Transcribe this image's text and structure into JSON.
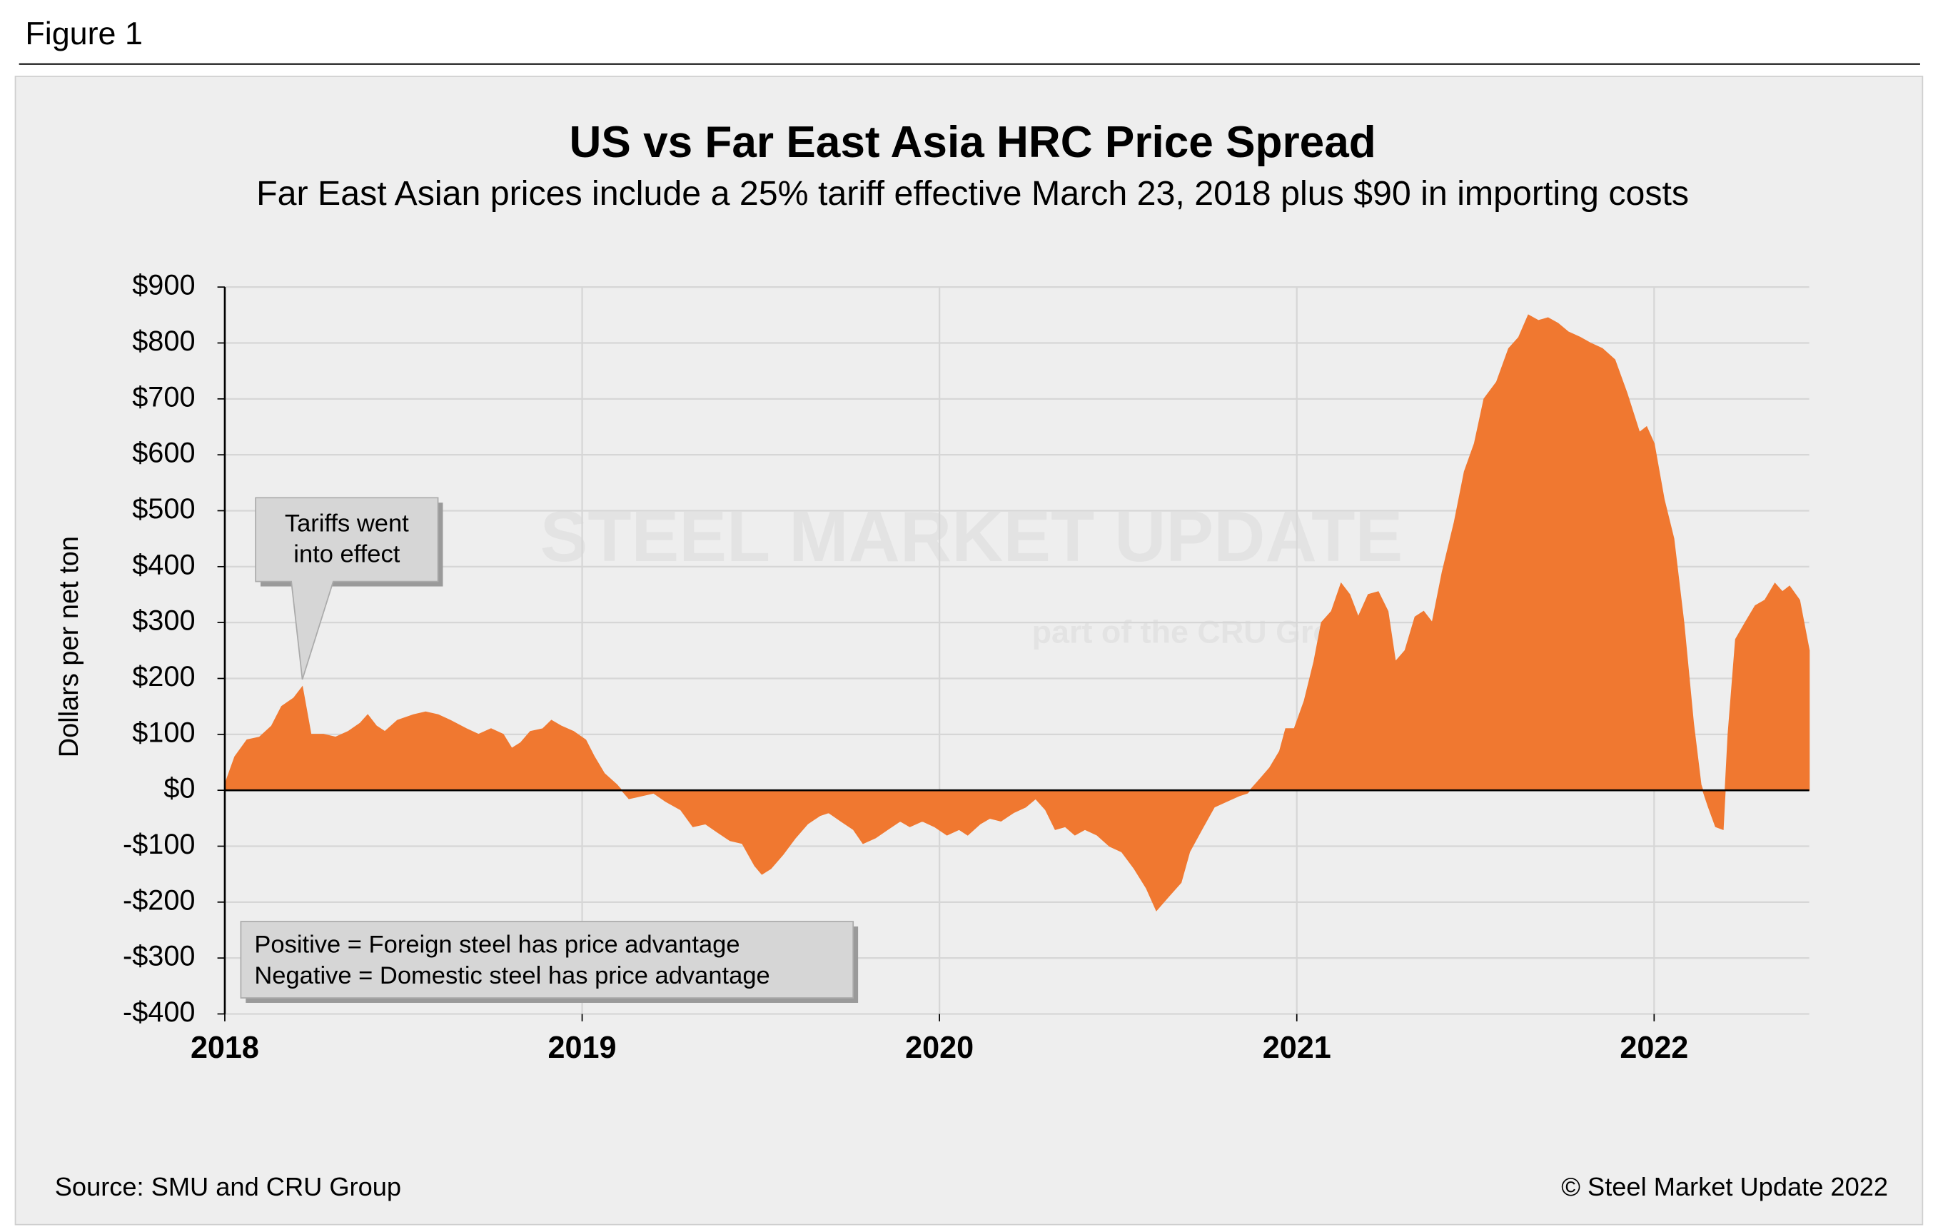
{
  "figure_label": "Figure 1",
  "source": "Source: SMU and CRU Group",
  "copyright": "© Steel Market Update 2022",
  "watermark": [
    "STEEL MARKET UPDATE",
    "part of the CRU Group"
  ],
  "chart_data": {
    "type": "area",
    "title": "US vs Far East Asia HRC Price Spread",
    "subtitle": "Far East Asian prices include a 25% tariff effective March 23, 2018 plus $90 in importing costs",
    "y_label": "Dollars per net ton",
    "color": "#f07830",
    "grid": true,
    "annotation": {
      "lines": [
        "Tariffs went",
        "into effect"
      ],
      "x": 2018.217,
      "y": 185
    },
    "note": [
      "Positive = Foreign steel has price advantage",
      "Negative = Domestic steel has price advantage"
    ],
    "xlim": [
      2018,
      2022.434
    ],
    "xticks": [
      2018,
      2019,
      2020,
      2021,
      2022
    ],
    "ylim": [
      -400,
      900
    ],
    "yticks": [
      {
        "value": -400,
        "label": "-$400"
      },
      {
        "value": -300,
        "label": "-$300"
      },
      {
        "value": -200,
        "label": "-$200"
      },
      {
        "value": -100,
        "label": "-$100"
      },
      {
        "value": 0,
        "label": "$0"
      },
      {
        "value": 100,
        "label": "$100"
      },
      {
        "value": 200,
        "label": "$200"
      },
      {
        "value": 300,
        "label": "$300"
      },
      {
        "value": 400,
        "label": "$400"
      },
      {
        "value": 500,
        "label": "$500"
      },
      {
        "value": 600,
        "label": "$600"
      },
      {
        "value": 700,
        "label": "$700"
      },
      {
        "value": 800,
        "label": "$800"
      },
      {
        "value": 900,
        "label": "$900"
      }
    ],
    "x": [
      2018.0,
      2018.028,
      2018.062,
      2018.097,
      2018.131,
      2018.159,
      2018.193,
      2018.217,
      2018.241,
      2018.276,
      2018.31,
      2018.345,
      2018.379,
      2018.4,
      2018.424,
      2018.448,
      2018.483,
      2018.528,
      2018.562,
      2018.597,
      2018.631,
      2018.676,
      2018.71,
      2018.745,
      2018.779,
      2018.803,
      2018.828,
      2018.855,
      2018.89,
      2018.914,
      2018.941,
      2018.976,
      2019.01,
      2019.034,
      2019.062,
      2019.097,
      2019.131,
      2019.166,
      2019.2,
      2019.234,
      2019.276,
      2019.31,
      2019.345,
      2019.379,
      2019.414,
      2019.448,
      2019.483,
      2019.503,
      2019.528,
      2019.562,
      2019.597,
      2019.631,
      2019.666,
      2019.69,
      2019.724,
      2019.759,
      2019.786,
      2019.821,
      2019.855,
      2019.89,
      2019.917,
      2019.952,
      2019.986,
      2020.021,
      2020.055,
      2020.079,
      2020.114,
      2020.141,
      2020.172,
      2020.207,
      2020.241,
      2020.269,
      2020.297,
      2020.324,
      2020.352,
      2020.379,
      2020.407,
      2020.441,
      2020.476,
      2020.51,
      2020.545,
      2020.579,
      2020.607,
      2020.641,
      2020.676,
      2020.7,
      2020.734,
      2020.769,
      2020.803,
      2020.838,
      2020.862,
      2020.89,
      2020.924,
      2020.952,
      2020.969,
      2020.993,
      2021.021,
      2021.048,
      2021.069,
      2021.097,
      2021.124,
      2021.148,
      2021.172,
      2021.2,
      2021.228,
      2021.255,
      2021.276,
      2021.303,
      2021.331,
      2021.355,
      2021.379,
      2021.407,
      2021.441,
      2021.469,
      2021.497,
      2021.524,
      2021.559,
      2021.593,
      2021.621,
      2021.648,
      2021.676,
      2021.703,
      2021.731,
      2021.759,
      2021.793,
      2021.821,
      2021.855,
      2021.89,
      2021.924,
      2021.959,
      2021.979,
      2022.0,
      2022.028,
      2022.055,
      2022.083,
      2022.11,
      2022.131,
      2022.152,
      2022.172,
      2022.193,
      2022.207,
      2022.228,
      2022.255,
      2022.283,
      2022.31,
      2022.338,
      2022.359,
      2022.379,
      2022.407,
      2022.434
    ],
    "values": [
      10,
      60,
      90,
      95,
      115,
      150,
      165,
      185,
      100,
      100,
      95,
      105,
      120,
      135,
      115,
      105,
      125,
      135,
      140,
      135,
      125,
      110,
      100,
      110,
      100,
      75,
      85,
      105,
      110,
      125,
      115,
      105,
      90,
      60,
      30,
      10,
      -15,
      -10,
      -5,
      -20,
      -35,
      -65,
      -60,
      -75,
      -90,
      -95,
      -135,
      -150,
      -140,
      -115,
      -85,
      -60,
      -45,
      -40,
      -55,
      -70,
      -95,
      -85,
      -70,
      -55,
      -65,
      -55,
      -65,
      -80,
      -70,
      -80,
      -60,
      -50,
      -55,
      -40,
      -30,
      -15,
      -35,
      -70,
      -65,
      -80,
      -70,
      -80,
      -100,
      -110,
      -140,
      -175,
      -215,
      -190,
      -165,
      -110,
      -70,
      -30,
      -20,
      -10,
      -5,
      15,
      40,
      70,
      110,
      110,
      160,
      230,
      300,
      320,
      370,
      350,
      310,
      350,
      355,
      320,
      230,
      250,
      310,
      320,
      300,
      390,
      480,
      570,
      620,
      700,
      730,
      790,
      810,
      850,
      840,
      845,
      835,
      820,
      810,
      800,
      790,
      770,
      710,
      640,
      650,
      620,
      520,
      450,
      300,
      120,
      10,
      -30,
      -65,
      -70,
      100,
      270,
      300,
      330,
      340,
      370,
      355,
      365,
      340,
      250
    ]
  }
}
